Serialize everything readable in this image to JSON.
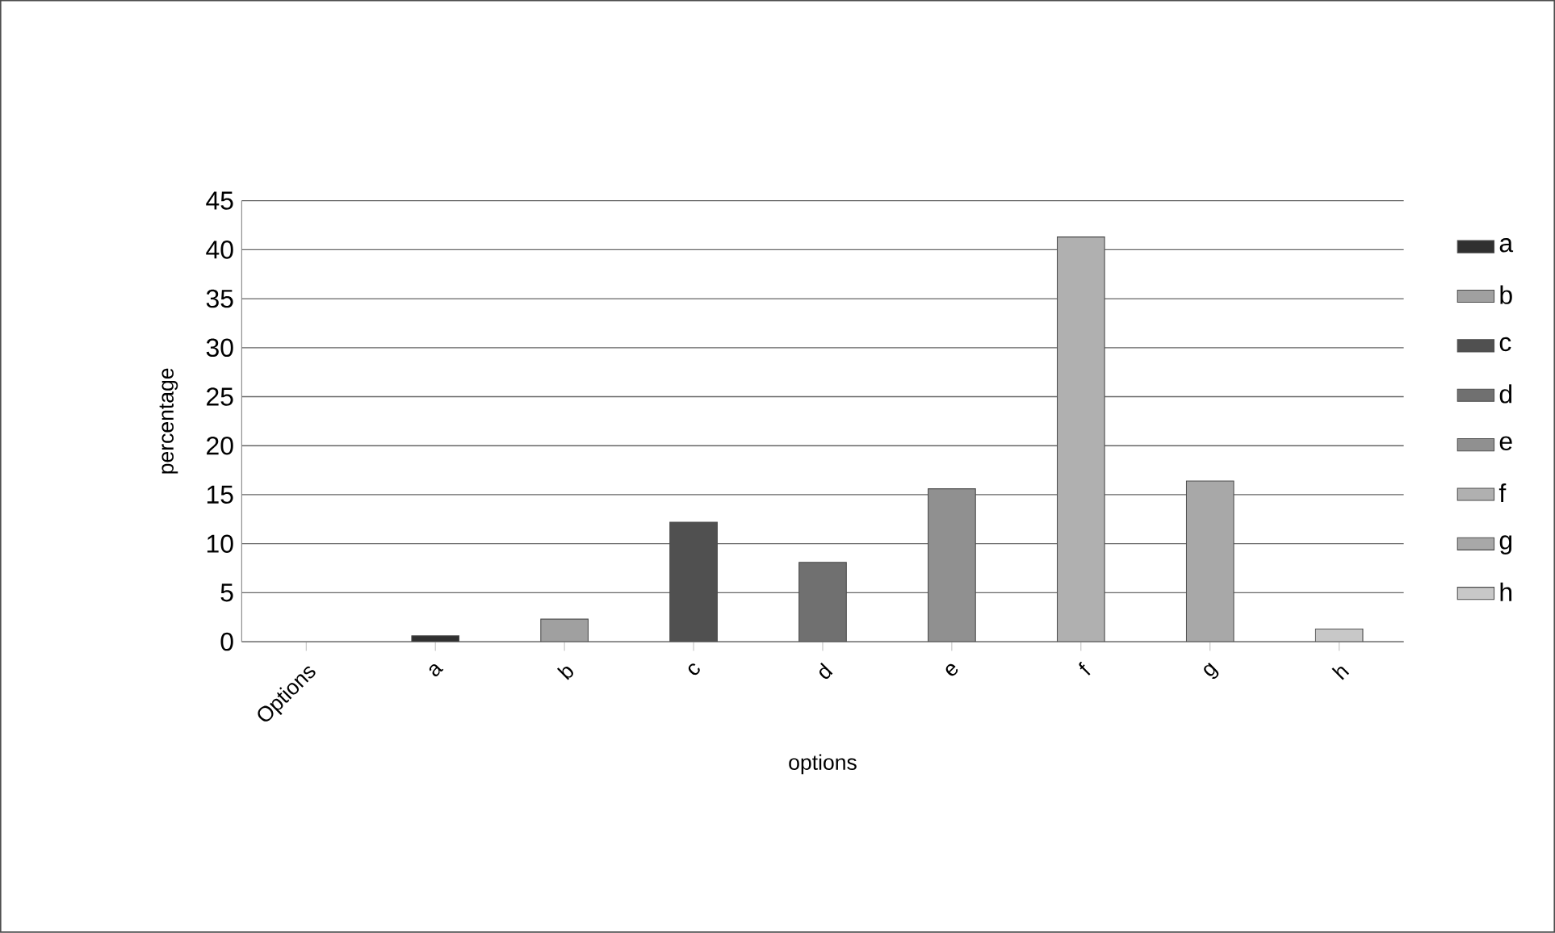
{
  "chart_data": {
    "type": "bar",
    "xlabel": "options",
    "ylabel": "percentage",
    "categories": [
      "Options",
      "a",
      "b",
      "c",
      "d",
      "e",
      "f",
      "g",
      "h"
    ],
    "series": [
      {
        "name": "a",
        "color": "#303030",
        "values": [
          null,
          0.6,
          null,
          null,
          null,
          null,
          null,
          null,
          null
        ]
      },
      {
        "name": "b",
        "color": "#a0a0a0",
        "values": [
          null,
          null,
          2.3,
          null,
          null,
          null,
          null,
          null,
          null
        ]
      },
      {
        "name": "c",
        "color": "#505050",
        "values": [
          null,
          null,
          null,
          12.2,
          null,
          null,
          null,
          null,
          null
        ]
      },
      {
        "name": "d",
        "color": "#707070",
        "values": [
          null,
          null,
          null,
          null,
          8.1,
          null,
          null,
          null,
          null
        ]
      },
      {
        "name": "e",
        "color": "#909090",
        "values": [
          null,
          null,
          null,
          null,
          null,
          15.6,
          null,
          null,
          null
        ]
      },
      {
        "name": "f",
        "color": "#b0b0b0",
        "values": [
          null,
          null,
          null,
          null,
          null,
          null,
          41.3,
          null,
          null
        ]
      },
      {
        "name": "g",
        "color": "#a8a8a8",
        "values": [
          null,
          null,
          null,
          null,
          null,
          null,
          null,
          16.4,
          null
        ]
      },
      {
        "name": "h",
        "color": "#c8c8c8",
        "values": [
          null,
          null,
          null,
          null,
          null,
          null,
          null,
          null,
          1.3
        ]
      }
    ],
    "ylim": [
      0,
      45
    ],
    "yticks": [
      0,
      5,
      10,
      15,
      20,
      25,
      30,
      35,
      40,
      45
    ],
    "grid": "y",
    "legend": "right"
  }
}
